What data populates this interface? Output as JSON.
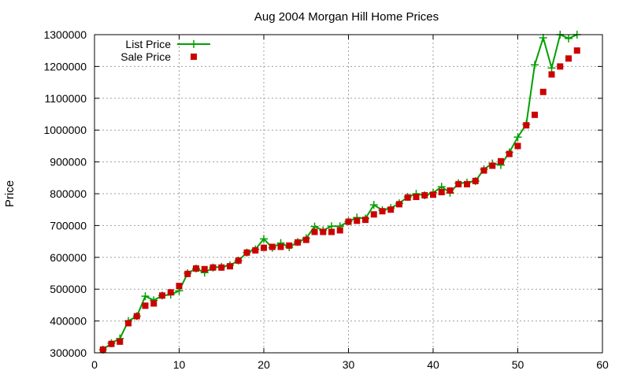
{
  "chart_data": {
    "type": "line",
    "title": "Aug 2004 Morgan Hill Home Prices",
    "xlabel": "",
    "ylabel": "Price",
    "xlim": [
      0,
      60
    ],
    "ylim": [
      300000,
      1300000
    ],
    "xticks": [
      "0",
      "10",
      "20",
      "30",
      "40",
      "50",
      "60"
    ],
    "yticks": [
      "300000",
      "400000",
      "500000",
      "600000",
      "700000",
      "800000",
      "900000",
      "1000000",
      "1100000",
      "1200000",
      "1300000"
    ],
    "grid": true,
    "legend_position": "top-left",
    "series": [
      {
        "name": "List Price",
        "kind": "line-points",
        "marker": "plus",
        "color": "#00a000",
        "x": [
          1,
          2,
          3,
          4,
          5,
          6,
          7,
          8,
          9,
          10,
          11,
          12,
          13,
          14,
          15,
          16,
          17,
          18,
          19,
          20,
          21,
          22,
          23,
          24,
          25,
          26,
          27,
          28,
          29,
          30,
          31,
          32,
          33,
          34,
          35,
          36,
          37,
          38,
          39,
          40,
          41,
          42,
          43,
          44,
          45,
          46,
          47,
          48,
          49,
          50,
          51,
          52,
          53,
          54,
          55,
          56,
          57
        ],
        "y": [
          310000,
          330000,
          345000,
          400000,
          415000,
          478000,
          465000,
          480000,
          483000,
          495000,
          550000,
          565000,
          552000,
          568000,
          570000,
          575000,
          590000,
          615000,
          625000,
          658000,
          630000,
          645000,
          632000,
          648000,
          660000,
          697000,
          685000,
          698000,
          698000,
          713000,
          725000,
          722000,
          765000,
          748000,
          755000,
          770000,
          790000,
          800000,
          795000,
          803000,
          822000,
          803000,
          833000,
          835000,
          840000,
          877000,
          895000,
          890000,
          930000,
          978000,
          1018000,
          1205000,
          1290000,
          1195000,
          1300000,
          1288000,
          1300000
        ]
      },
      {
        "name": "Sale Price",
        "kind": "points",
        "marker": "square",
        "color": "#cc0000",
        "x": [
          1,
          2,
          3,
          4,
          5,
          6,
          7,
          8,
          9,
          10,
          11,
          12,
          13,
          14,
          15,
          16,
          17,
          18,
          19,
          20,
          21,
          22,
          23,
          24,
          25,
          26,
          27,
          28,
          29,
          30,
          31,
          32,
          33,
          34,
          35,
          36,
          37,
          38,
          39,
          40,
          41,
          42,
          43,
          44,
          45,
          46,
          47,
          48,
          49,
          50,
          51,
          52,
          53,
          54,
          55,
          56,
          57
        ],
        "y": [
          310000,
          328000,
          335000,
          393000,
          415000,
          448000,
          455000,
          480000,
          490000,
          510000,
          548000,
          565000,
          563000,
          568000,
          568000,
          572000,
          590000,
          615000,
          622000,
          630000,
          633000,
          633000,
          637000,
          647000,
          655000,
          680000,
          680000,
          680000,
          685000,
          712000,
          715000,
          718000,
          735000,
          745000,
          750000,
          767000,
          788000,
          790000,
          795000,
          797000,
          805000,
          810000,
          830000,
          830000,
          840000,
          873000,
          888000,
          902000,
          925000,
          950000,
          1015000,
          1048000,
          1120000,
          1175000,
          1200000,
          1225000,
          1250000
        ]
      }
    ]
  }
}
